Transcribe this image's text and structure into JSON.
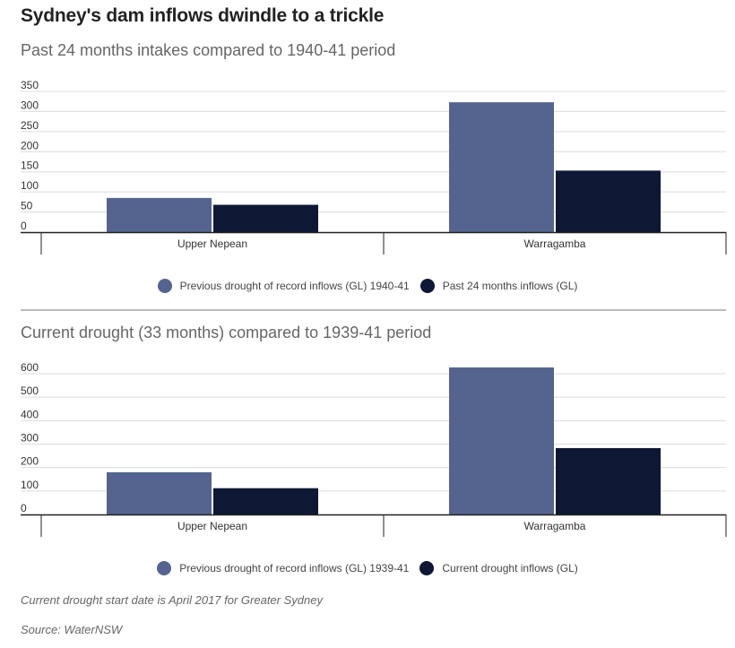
{
  "header": {
    "title": "Sydney's dam inflows dwindle to a trickle"
  },
  "chart_data": [
    {
      "type": "bar",
      "title": "Past 24 months intakes compared to 1940-41 period",
      "categories": [
        "Upper Nepean",
        "Warragamba"
      ],
      "series": [
        {
          "name": "Previous drought of record inflows (GL) 1940-41",
          "values": [
            85,
            323
          ],
          "color": "#55648f"
        },
        {
          "name": "Past 24 months inflows (GL)",
          "values": [
            68,
            153
          ],
          "color": "#0e1835"
        }
      ],
      "yticks": [
        0,
        50,
        100,
        150,
        200,
        250,
        300,
        350
      ],
      "ylim": [
        0,
        350
      ],
      "xlabel": "",
      "ylabel": ""
    },
    {
      "type": "bar",
      "title": "Current drought (33 months) compared to 1939-41 period",
      "categories": [
        "Upper Nepean",
        "Warragamba"
      ],
      "series": [
        {
          "name": "Previous drought of record inflows (GL) 1939-41",
          "values": [
            180,
            627
          ],
          "color": "#55648f"
        },
        {
          "name": "Current drought inflows (GL)",
          "values": [
            112,
            283
          ],
          "color": "#0e1835"
        }
      ],
      "yticks": [
        0,
        100,
        200,
        300,
        400,
        500,
        600
      ],
      "ylim": [
        0,
        600
      ],
      "xlabel": "",
      "ylabel": ""
    }
  ],
  "footer": {
    "note": "Current drought start date is April 2017 for Greater Sydney",
    "source": "Source: WaterNSW"
  }
}
